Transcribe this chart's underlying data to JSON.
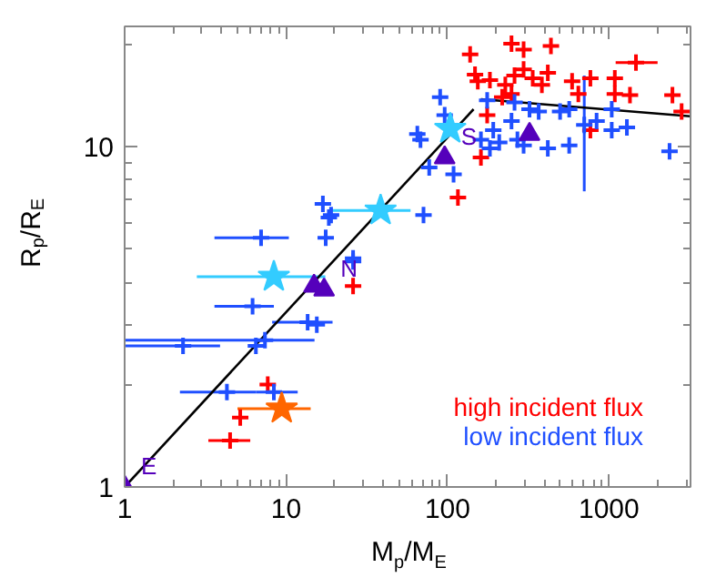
{
  "chart_data": {
    "type": "scatter",
    "xlabel": "M$_{p}$/M$_{E}$",
    "ylabel": "R$_{p}$/R$_{E}$",
    "log": "xy",
    "xlim": [
      1,
      3200
    ],
    "ylim": [
      1,
      22.6
    ],
    "xticks": [
      1,
      10,
      100,
      1000
    ],
    "yticks": [
      1,
      10
    ],
    "grid": false,
    "legend": "bottom right",
    "series": [
      {
        "name": "high incident flux",
        "type": "scatter",
        "marker": "cross",
        "color": "#ff0000",
        "x": [
          138,
          249,
          296,
          437,
          148,
          154,
          183,
          228,
          260,
          296,
          337,
          384,
          418,
          249,
          218,
          591,
          646,
          767,
          1087,
          1469,
          1087,
          1349,
          2472,
          2818,
          767,
          176,
          161,
          116,
          26,
          7.7,
          5.2,
          4.5
        ],
        "values": [
          18.7,
          20.1,
          19.3,
          19.8,
          16.3,
          15.6,
          15.7,
          15.2,
          16.2,
          16.9,
          15.9,
          15.2,
          16.5,
          14.3,
          14.0,
          15.6,
          14.3,
          15.9,
          15.9,
          17.7,
          14.3,
          14.2,
          14.2,
          12.7,
          11.2,
          12.4,
          9.3,
          7.1,
          3.9,
          2.0,
          1.6,
          1.37
        ],
        "xerrors": [
          null,
          null,
          null,
          null,
          null,
          null,
          null,
          null,
          null,
          null,
          null,
          null,
          null,
          null,
          null,
          null,
          null,
          null,
          null,
          [
            1100,
            2000
          ],
          null,
          null,
          null,
          null,
          null,
          null,
          null,
          null,
          null,
          null,
          null,
          [
            3.3,
            6.0
          ]
        ]
      },
      {
        "name": "low incident flux",
        "type": "scatter",
        "marker": "cross",
        "color": "#1f4fff",
        "x": [
          90,
          96,
          65,
          68,
          77,
          109,
          71,
          26,
          19,
          176,
          192,
          209,
          183,
          249,
          271,
          296,
          322,
          367,
          498,
          567,
          418,
          567,
          703,
          838,
          1040,
          1291,
          1040,
          2372,
          260,
          161,
          16.9,
          18.4,
          17.6,
          7.0,
          26,
          6.2,
          13.6,
          15.5,
          2.3,
          7.4,
          6.5,
          4.3,
          8.4
        ],
        "values": [
          14.0,
          12.4,
          10.9,
          10.5,
          8.7,
          8.3,
          6.3,
          4.6,
          6.3,
          13.7,
          11.2,
          10.3,
          9.9,
          11.9,
          10.5,
          10.1,
          12.9,
          12.7,
          12.7,
          12.9,
          9.9,
          10.1,
          11.6,
          11.9,
          11.2,
          11.4,
          12.9,
          9.7,
          13.5,
          10.5,
          6.8,
          6.2,
          5.4,
          5.4,
          4.7,
          3.4,
          3.05,
          3.0,
          2.6,
          2.7,
          2.6,
          1.9,
          1.9
        ],
        "xerrors": [
          null,
          null,
          null,
          null,
          null,
          null,
          null,
          null,
          null,
          null,
          null,
          null,
          null,
          null,
          null,
          null,
          null,
          null,
          null,
          null,
          null,
          null,
          null,
          null,
          null,
          null,
          null,
          null,
          null,
          null,
          null,
          null,
          null,
          [
            3.6,
            10.4
          ],
          null,
          [
            3.6,
            8.4
          ],
          [
            8.2,
            19.4
          ],
          null,
          [
            1,
            3.9
          ],
          [
            1,
            15
          ],
          null,
          [
            2.2,
            6.5
          ],
          [
            6.5,
            11.8
          ]
        ],
        "errors": [
          null,
          null,
          null,
          null,
          null,
          null,
          null,
          null,
          null,
          null,
          null,
          null,
          null,
          null,
          null,
          null,
          null,
          null,
          null,
          null,
          null,
          null,
          [
            7.4,
            16.2
          ],
          null,
          null,
          null,
          null,
          null,
          null,
          null,
          null,
          null,
          null,
          null,
          null,
          null,
          null,
          null,
          null,
          null,
          null,
          null,
          null
        ]
      },
      {
        "type": "scatter",
        "marker": "star",
        "color": "#33ccff",
        "x": [
          8.4,
          38.5,
          104
        ],
        "values": [
          4.15,
          6.5,
          11.3
        ],
        "xerrors": [
          [
            2.8,
            17.5
          ],
          [
            18.4,
            59
          ],
          null
        ]
      },
      {
        "type": "scatter",
        "marker": "star",
        "color": "#ff6600",
        "x": [
          9.4
        ],
        "values": [
          1.7
        ],
        "xerrors": [
          [
            5.0,
            14.2
          ]
        ]
      },
      {
        "type": "scatter",
        "marker": "triangle",
        "color": "#5500bb",
        "x": [
          1,
          14.9,
          17.2,
          96,
          322
        ],
        "values": [
          1,
          3.9,
          3.8,
          9.3,
          10.9
        ]
      },
      {
        "type": "line",
        "color": "#000000",
        "x": [
          1,
          145
        ],
        "values": [
          1,
          12.9
        ]
      },
      {
        "type": "line",
        "color": "#000000",
        "x": [
          161,
          3200
        ],
        "values": [
          13.8,
          12.3
        ]
      }
    ],
    "annotations": [
      {
        "text": "E",
        "x": 1,
        "y": 1
      },
      {
        "text": "N",
        "x": 17.2,
        "y": 3.8
      },
      {
        "text": "S",
        "x": 96,
        "y": 9.3
      }
    ]
  }
}
